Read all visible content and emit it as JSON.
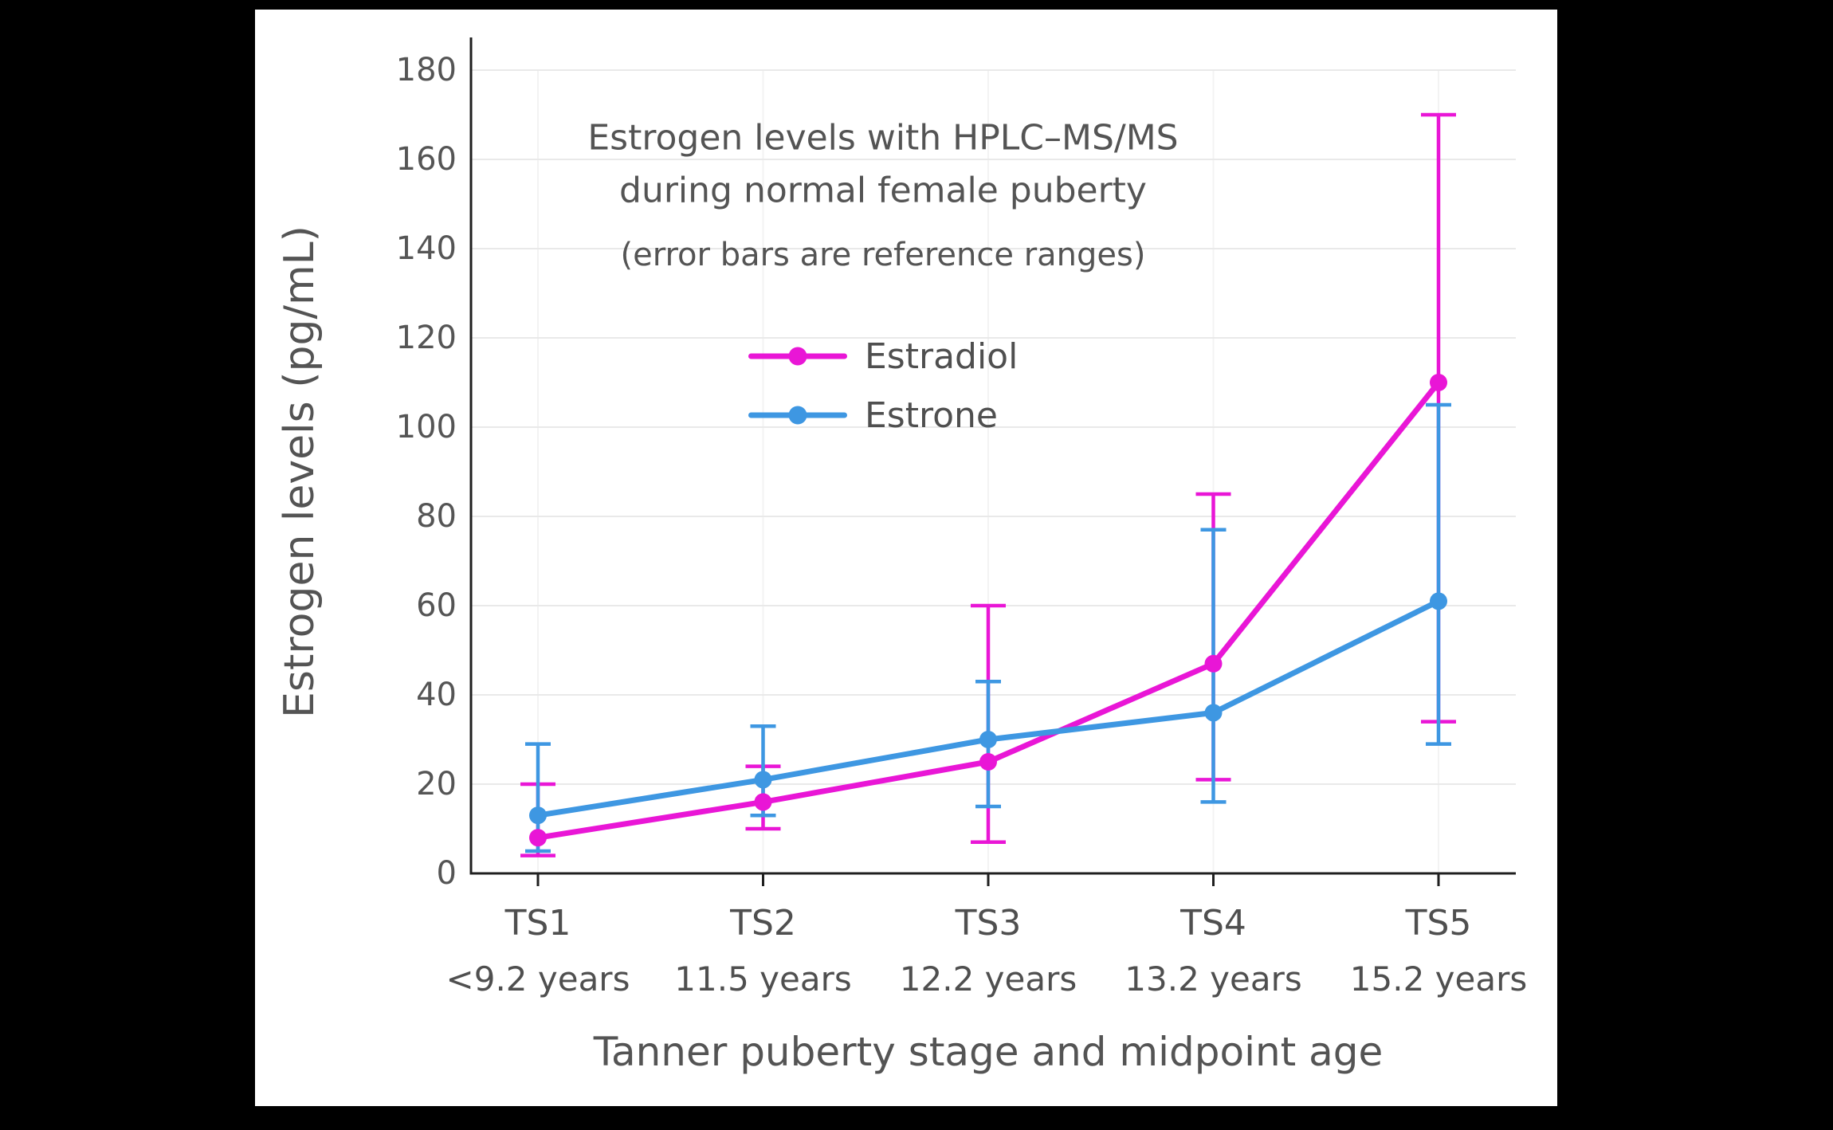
{
  "frame": {
    "background": "#000000",
    "panel_background": "#ffffff"
  },
  "chart_data": {
    "type": "line",
    "title_lines": [
      "Estrogen levels with HPLC–MS/MS",
      "during normal female puberty"
    ],
    "subtitle": "(error bars are reference ranges)",
    "xlabel": "Tanner puberty stage and midpoint age",
    "ylabel": "Estrogen levels (pg/mL)",
    "ylim": [
      0,
      180
    ],
    "ytick_step": 20,
    "ytick_labels": [
      "0",
      "20",
      "40",
      "60",
      "80",
      "100",
      "120",
      "140",
      "160",
      "180"
    ],
    "grid": true,
    "legend_position": "upper-center",
    "categories": [
      "TS1",
      "TS2",
      "TS3",
      "TS4",
      "TS5"
    ],
    "category_sublabels": [
      "<9.2 years",
      "11.5 years",
      "12.2 years",
      "13.2 years",
      "15.2 years"
    ],
    "series": [
      {
        "name": "Estradiol",
        "color": "#E916D6",
        "values": [
          8,
          16,
          25,
          47,
          110
        ],
        "err_low": [
          4,
          10,
          7,
          21,
          34
        ],
        "err_high": [
          20,
          24,
          60,
          85,
          170
        ]
      },
      {
        "name": "Estrone",
        "color": "#3E97E2",
        "values": [
          13,
          21,
          30,
          36,
          61
        ],
        "err_low": [
          5,
          13,
          15,
          16,
          29
        ],
        "err_high": [
          29,
          33,
          43,
          77,
          105
        ]
      }
    ],
    "axis_color": "#1f1f1f",
    "grid_color": "#e9e9e9",
    "minor_grid_color": "#f3f3f3",
    "text_color": "#545454"
  }
}
